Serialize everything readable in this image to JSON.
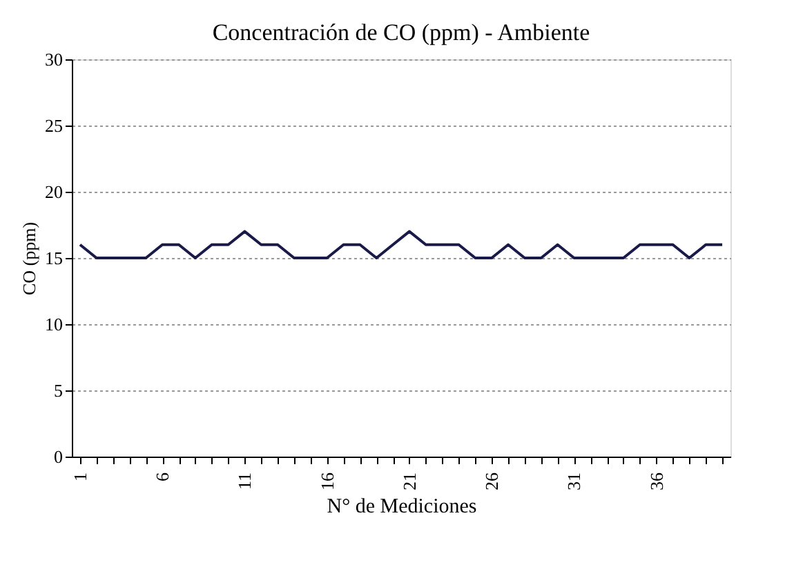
{
  "chart_data": {
    "type": "line",
    "title": "Concentración de CO (ppm) - Ambiente",
    "xlabel": "N° de Mediciones",
    "ylabel": "CO (ppm)",
    "categories": [
      "1",
      null,
      null,
      null,
      null,
      "6",
      null,
      null,
      null,
      null,
      "11",
      null,
      null,
      null,
      null,
      "16",
      null,
      null,
      null,
      null,
      "21",
      null,
      null,
      null,
      null,
      "26",
      null,
      null,
      null,
      null,
      "31",
      null,
      null,
      null,
      null,
      "36",
      null,
      null,
      null,
      null
    ],
    "series": [
      {
        "color": "#1a1a4a",
        "values": [
          16,
          15,
          15,
          15,
          15,
          16,
          16,
          15,
          16,
          16,
          17,
          16,
          16,
          15,
          15,
          15,
          16,
          16,
          15,
          16,
          17,
          16,
          16,
          16,
          15,
          15,
          16,
          15,
          15,
          16,
          15,
          15,
          15,
          15,
          16,
          16,
          16,
          15,
          16,
          16
        ]
      }
    ],
    "ylim": [
      0,
      30
    ],
    "yticks": [
      0,
      5,
      10,
      15,
      20,
      25,
      30
    ],
    "grid": "y",
    "marker": "none",
    "line_style": "solid"
  }
}
